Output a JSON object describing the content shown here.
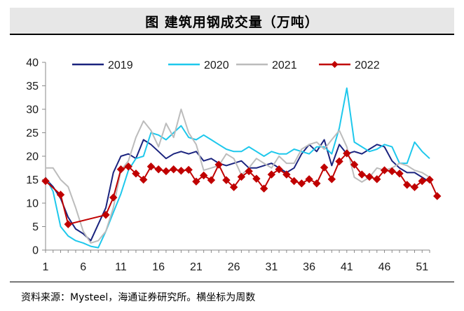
{
  "header": {
    "title": "图    建筑用钢成交量（万吨）"
  },
  "footer": {
    "source": "资料来源：Mysteel，海通证券研究所。横坐标为周数"
  },
  "chart_data": {
    "type": "line",
    "title": "图    建筑用钢成交量（万吨）",
    "xlabel": "",
    "ylabel": "",
    "xlim": [
      1,
      52
    ],
    "ylim": [
      0,
      40
    ],
    "x_ticks": [
      1,
      6,
      11,
      16,
      21,
      26,
      31,
      36,
      41,
      46,
      51
    ],
    "y_ticks": [
      0,
      5,
      10,
      15,
      20,
      25,
      30,
      35,
      40
    ],
    "grid": false,
    "legend_position": "top",
    "series": [
      {
        "name": "2019",
        "color": "#1a237e",
        "marker": "none",
        "values": [
          15.2,
          13.5,
          11,
          7,
          4.5,
          3.5,
          2,
          5.5,
          9,
          16.5,
          20,
          20.5,
          19.5,
          23.5,
          22.5,
          21,
          19.5,
          20.5,
          21,
          20.5,
          21,
          19,
          19.5,
          18.5,
          18,
          18.5,
          19,
          17.5,
          17.5,
          18,
          18.5,
          17.5,
          16.5,
          17.5,
          20.5,
          22.5,
          21,
          23.5,
          18,
          22.5,
          20.5,
          21,
          20.5,
          21.5,
          22.5,
          22,
          19,
          17.5,
          16.5,
          16.5,
          15.5,
          14.5
        ]
      },
      {
        "name": "2020",
        "color": "#1ec8ec",
        "marker": "none",
        "values": [
          15.5,
          12.5,
          5,
          3,
          2,
          1.5,
          0.8,
          0.5,
          4,
          8,
          12,
          17,
          19.5,
          20,
          25,
          24.5,
          23.5,
          25,
          26.5,
          24,
          23.5,
          24.5,
          23.5,
          22.5,
          21.5,
          21,
          21,
          22,
          21,
          20,
          21,
          20.5,
          20.5,
          21.5,
          21,
          20.5,
          22,
          22,
          20.5,
          26,
          34.5,
          23,
          22,
          21,
          21.5,
          22.5,
          22,
          18.5,
          18.5,
          23,
          21,
          19.5
        ]
      },
      {
        "name": "2021",
        "color": "#bcbcbc",
        "marker": "none",
        "values": [
          17.5,
          17.5,
          15,
          13.5,
          9,
          4,
          1.5,
          2,
          4,
          9,
          17,
          19,
          24,
          27.5,
          25.5,
          22,
          27,
          24,
          30,
          25,
          22.5,
          17,
          17.5,
          18,
          20.5,
          19.5,
          16,
          17.5,
          19.5,
          18.5,
          17.5,
          20,
          18.5,
          18.5,
          21.5,
          22.5,
          23,
          21.5,
          23.5,
          25.5,
          22,
          15.5,
          14.5,
          15.5,
          17.5,
          17,
          17.5,
          18.5,
          18,
          17,
          16.5,
          15.5
        ]
      },
      {
        "name": "2022",
        "color": "#c00000",
        "marker": "diamond",
        "values": [
          14.7,
          null,
          11.8,
          5.5,
          null,
          null,
          null,
          null,
          7.5,
          11.2,
          17.2,
          17.8,
          16.3,
          15,
          17.8,
          17.2,
          16.8,
          17.2,
          16.9,
          17.1,
          14.6,
          15.9,
          14.9,
          18.2,
          14.9,
          13.4,
          15.6,
          16.8,
          15.2,
          13.1,
          16.1,
          17.2,
          16.1,
          14.7,
          14.2,
          15.1,
          14.2,
          17.6,
          15.1,
          18.9,
          20.6,
          18.2,
          16.1,
          15.6,
          15.1,
          17,
          16.8,
          16.3,
          13.9,
          13.4,
          14.7,
          15,
          11.5
        ]
      }
    ]
  }
}
